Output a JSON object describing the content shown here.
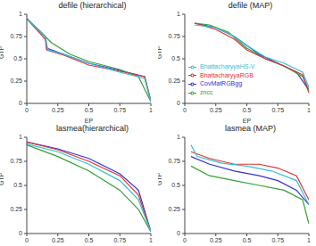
{
  "chart_data": [
    {
      "type": "line",
      "title": "defile (hierarchical)",
      "x_label": "EP",
      "y_label": "GTP",
      "xlim": [
        0,
        1
      ],
      "ylim": [
        0,
        1
      ],
      "xticks": [
        0,
        0.25,
        0.5,
        0.75,
        1
      ],
      "yticks": [
        0,
        0.25,
        0.5,
        0.75,
        1
      ],
      "series": [
        {
          "name": "CovMatRGBgg",
          "color": "#3232d2",
          "x": [
            0,
            0.15,
            0.16,
            0.3,
            0.5,
            0.75,
            0.95,
            1
          ],
          "values": [
            0.95,
            0.75,
            0.62,
            0.55,
            0.45,
            0.37,
            0.3,
            0.02
          ]
        },
        {
          "name": "zncc",
          "color": "#33a033",
          "x": [
            0,
            0.1,
            0.2,
            0.35,
            0.5,
            0.75,
            0.9,
            1
          ],
          "values": [
            0.95,
            0.82,
            0.68,
            0.55,
            0.47,
            0.38,
            0.3,
            0.02
          ]
        },
        {
          "name": "BhattacharyyaRGB",
          "color": "#e03232",
          "x": [
            0,
            0.15,
            0.16,
            0.3,
            0.5,
            0.75,
            0.95,
            1
          ],
          "values": [
            0.95,
            0.72,
            0.6,
            0.54,
            0.43,
            0.36,
            0.3,
            0.03
          ]
        },
        {
          "name": "BhattacharyyaHS-V",
          "color": "#32c0d2",
          "x": [
            0,
            0.15,
            0.17,
            0.3,
            0.5,
            0.75,
            0.95,
            1
          ],
          "values": [
            0.95,
            0.75,
            0.6,
            0.55,
            0.45,
            0.35,
            0.28,
            0.02
          ]
        }
      ]
    },
    {
      "type": "line",
      "title": "defile (MAP)",
      "x_label": "EP",
      "y_label": "GTP",
      "xlim": [
        0,
        1
      ],
      "ylim": [
        0,
        1
      ],
      "xticks": [
        0,
        0.25,
        0.5,
        0.75,
        1
      ],
      "yticks": [
        0,
        0.25,
        0.5,
        0.75,
        1
      ],
      "legend": "lower left",
      "series": [
        {
          "name": "CovMatRGBgg",
          "color": "#3232d2",
          "x": [
            0.08,
            0.25,
            0.4,
            0.5,
            0.6,
            0.75,
            0.9,
            1
          ],
          "values": [
            0.9,
            0.85,
            0.75,
            0.65,
            0.55,
            0.45,
            0.35,
            0.15
          ]
        },
        {
          "name": "zncc",
          "color": "#33a033",
          "x": [
            0.08,
            0.2,
            0.35,
            0.5,
            0.65,
            0.8,
            0.95,
            1
          ],
          "values": [
            0.9,
            0.88,
            0.8,
            0.62,
            0.5,
            0.42,
            0.3,
            0.15
          ]
        },
        {
          "name": "BhattacharyyaRGB",
          "color": "#e03232",
          "x": [
            0.08,
            0.25,
            0.4,
            0.5,
            0.65,
            0.8,
            0.95,
            1
          ],
          "values": [
            0.9,
            0.83,
            0.72,
            0.6,
            0.5,
            0.42,
            0.32,
            0.12
          ]
        },
        {
          "name": "BhattacharyyaHS-V",
          "color": "#32c0d2",
          "x": [
            0.08,
            0.25,
            0.4,
            0.5,
            0.65,
            0.8,
            0.95,
            1
          ],
          "values": [
            0.88,
            0.85,
            0.75,
            0.65,
            0.52,
            0.45,
            0.35,
            0.18
          ]
        }
      ]
    },
    {
      "type": "line",
      "title": "lasmea(hierarchical)",
      "y_label": "GTP",
      "xlim": [
        0,
        1
      ],
      "ylim": [
        0,
        1
      ],
      "xticks": [
        0,
        0.25,
        0.5,
        0.75,
        1
      ],
      "yticks": [
        0,
        0.25,
        0.5,
        0.75,
        1
      ],
      "series": [
        {
          "name": "CovMatRGBgg",
          "color": "#3232d2",
          "x": [
            0,
            0.25,
            0.5,
            0.75,
            0.9,
            1
          ],
          "values": [
            0.95,
            0.88,
            0.78,
            0.62,
            0.45,
            0.02
          ]
        },
        {
          "name": "zncc",
          "color": "#33a033",
          "x": [
            0,
            0.25,
            0.5,
            0.75,
            0.9,
            1
          ],
          "values": [
            0.92,
            0.8,
            0.65,
            0.45,
            0.25,
            0.02
          ]
        },
        {
          "name": "BhattacharyyaRGB",
          "color": "#e03232",
          "x": [
            0,
            0.25,
            0.5,
            0.75,
            0.9,
            1
          ],
          "values": [
            0.95,
            0.87,
            0.75,
            0.6,
            0.4,
            0.02
          ]
        },
        {
          "name": "BhattacharyyaHS-V",
          "color": "#32c0d2",
          "x": [
            0,
            0.25,
            0.5,
            0.75,
            0.9,
            1
          ],
          "values": [
            0.93,
            0.85,
            0.72,
            0.55,
            0.35,
            0.02
          ]
        }
      ]
    },
    {
      "type": "line",
      "title": "lasmea (MAP)",
      "y_label": "GTP",
      "xlim": [
        0,
        1
      ],
      "ylim": [
        0,
        1
      ],
      "xticks": [
        0,
        0.25,
        0.5,
        0.75,
        1
      ],
      "yticks": [
        0,
        0.25,
        0.5,
        0.75,
        1
      ],
      "series": [
        {
          "name": "CovMatRGBgg",
          "color": "#3232d2",
          "x": [
            0.05,
            0.2,
            0.4,
            0.6,
            0.75,
            0.9,
            1
          ],
          "values": [
            0.8,
            0.72,
            0.65,
            0.6,
            0.55,
            0.45,
            0.3
          ]
        },
        {
          "name": "zncc",
          "color": "#33a033",
          "x": [
            0.05,
            0.2,
            0.4,
            0.6,
            0.8,
            0.95,
            1
          ],
          "values": [
            0.7,
            0.6,
            0.55,
            0.5,
            0.45,
            0.35,
            0.1
          ]
        },
        {
          "name": "BhattacharyyaRGB",
          "color": "#e03232",
          "x": [
            0.05,
            0.2,
            0.4,
            0.6,
            0.75,
            0.9,
            1
          ],
          "values": [
            0.85,
            0.78,
            0.72,
            0.72,
            0.68,
            0.6,
            0.35
          ]
        },
        {
          "name": "BhattacharyyaHS-V",
          "color": "#32c0d2",
          "x": [
            0.05,
            0.1,
            0.3,
            0.5,
            0.7,
            0.9,
            1
          ],
          "values": [
            0.92,
            0.8,
            0.73,
            0.7,
            0.65,
            0.55,
            0.3
          ]
        }
      ]
    }
  ]
}
